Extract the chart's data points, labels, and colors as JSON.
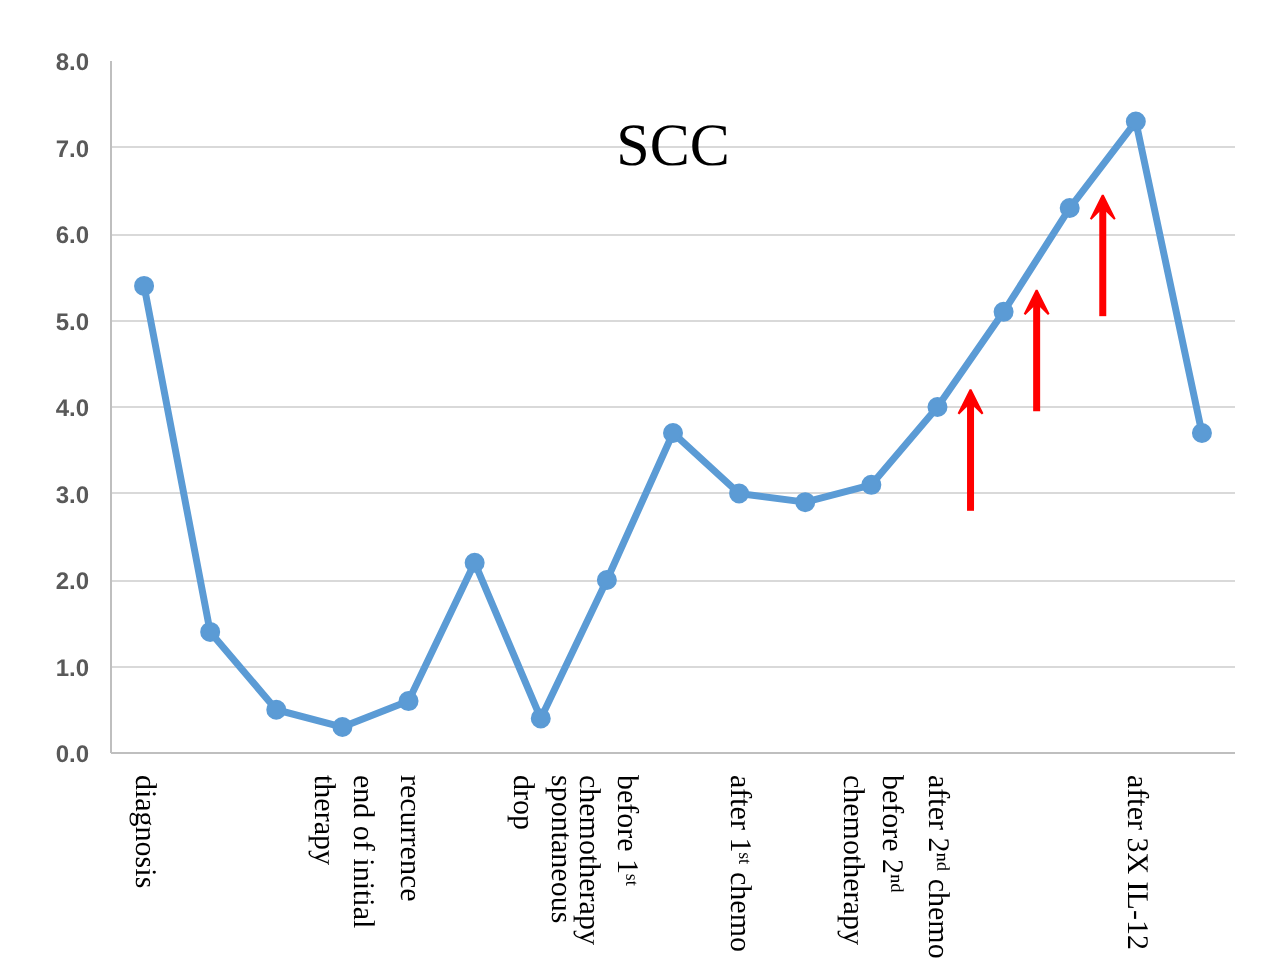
{
  "chart_data": {
    "type": "line",
    "title": "SCC",
    "categories": [
      "diagnosis",
      null,
      null,
      "end of initial\ntherapy",
      "recurrence",
      null,
      "spontaneous\ndrop",
      "before 1ˢᵗ\nchemotherapy",
      null,
      "after 1ˢᵗ chemo",
      null,
      "before 2ⁿᵈ\nchemotherapy",
      "after 2ⁿᵈ chemo",
      null,
      null,
      "after 3X IL-12",
      null
    ],
    "series": [
      {
        "color": "#5b9bd5",
        "values": [
          5.4,
          1.4,
          0.5,
          0.3,
          0.6,
          2.2,
          0.4,
          2.0,
          3.7,
          3.0,
          2.9,
          3.1,
          4.0,
          5.1,
          6.3,
          7.3,
          3.7
        ]
      }
    ],
    "ylim": [
      0,
      8
    ],
    "yticks": [
      {
        "value": 0,
        "label": "0.0"
      },
      {
        "value": 1,
        "label": "1.0"
      },
      {
        "value": 2,
        "label": "2.0"
      },
      {
        "value": 3,
        "label": "3.0"
      },
      {
        "value": 4,
        "label": "4.0"
      },
      {
        "value": 5,
        "label": "5.0"
      },
      {
        "value": 6,
        "label": "6.0"
      },
      {
        "value": 7,
        "label": "7.0"
      },
      {
        "value": 8,
        "label": "8.0"
      }
    ],
    "grid": "y",
    "marker": "circle",
    "line_style": "solid"
  }
}
